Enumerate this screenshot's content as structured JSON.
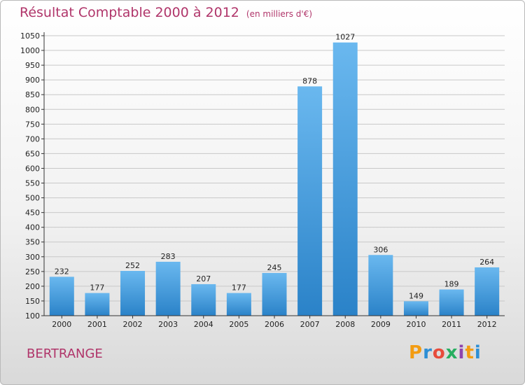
{
  "chart_data": {
    "type": "bar",
    "title": "Résultat Comptable 2000 à 2012",
    "subtitle": "(en milliers d'€)",
    "categories": [
      "2000",
      "2001",
      "2002",
      "2003",
      "2004",
      "2005",
      "2006",
      "2007",
      "2008",
      "2009",
      "2010",
      "2011",
      "2012"
    ],
    "values": [
      232,
      177,
      252,
      283,
      207,
      177,
      245,
      878,
      1027,
      306,
      149,
      189,
      264
    ],
    "ylim": [
      100,
      1050
    ],
    "yticks": [
      100,
      150,
      200,
      250,
      300,
      350,
      400,
      450,
      500,
      550,
      600,
      650,
      700,
      750,
      800,
      850,
      900,
      950,
      1000,
      1050
    ],
    "xlabel": "",
    "ylabel": ""
  },
  "location": "BERTRANGE",
  "brand": {
    "letters": [
      "P",
      "r",
      "o",
      "x",
      "i",
      "t",
      "i"
    ],
    "colors": [
      "#f39c12",
      "#2d8fd5",
      "#e74c3c",
      "#27ae60",
      "#8e44ad",
      "#f39c12",
      "#2d8fd5"
    ]
  },
  "colors": {
    "bar_top": "#6ab8ef",
    "bar_bottom": "#2a82c8",
    "title": "#b0356a"
  }
}
